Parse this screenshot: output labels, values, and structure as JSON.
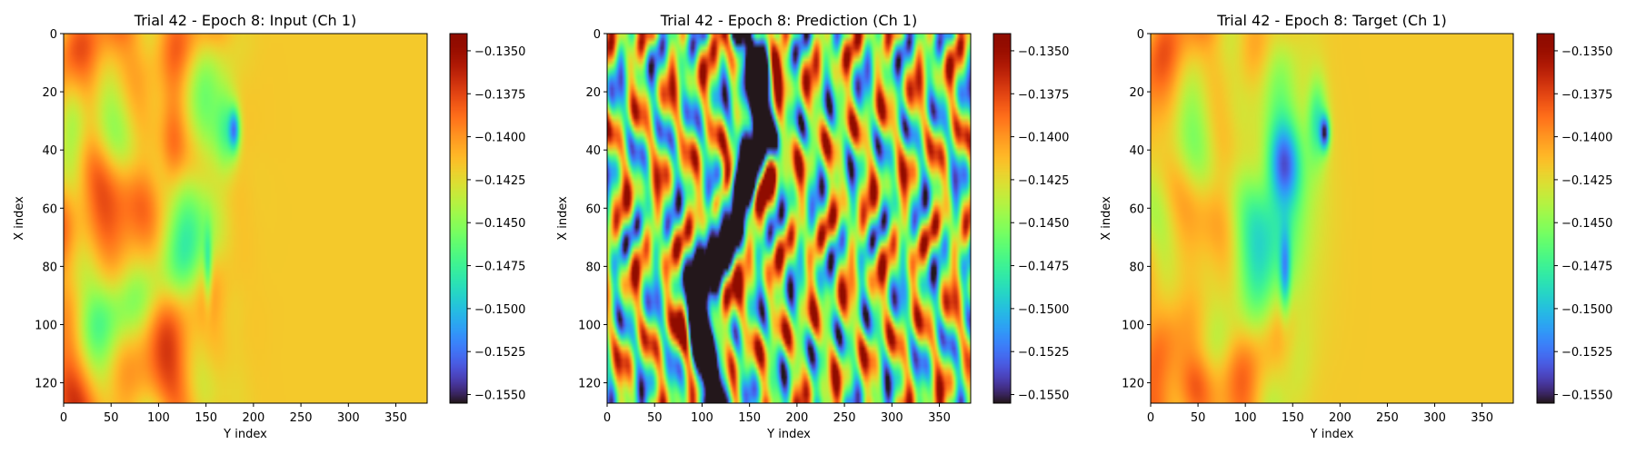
{
  "colormap": "turbo",
  "chart_data": [
    {
      "type": "heatmap",
      "title": "Trial 42 - Epoch 8: Input (Ch 1)",
      "xlabel": "Y index",
      "ylabel": "X index",
      "xlim": [
        0,
        383
      ],
      "ylim": [
        127,
        0
      ],
      "xticks": [
        "0",
        "50",
        "100",
        "150",
        "200",
        "250",
        "300",
        "350"
      ],
      "yticks": [
        "0",
        "20",
        "40",
        "60",
        "80",
        "100",
        "120"
      ],
      "colorbar": {
        "vmin": -0.1555,
        "vmax": -0.134,
        "ticks": [
          "−0.1350",
          "−0.1375",
          "−0.1400",
          "−0.1425",
          "−0.1450",
          "−0.1475",
          "−0.1500",
          "−0.1525",
          "−0.1550"
        ]
      },
      "field_description": "Wavy orange/red streaks for Y<150, bright green blob near Y 130-160 / X 30-90, cyan-blue spot near Y≈180, X≈33; uniform orange for Y>200"
    },
    {
      "type": "heatmap",
      "title": "Trial 42 - Epoch 8: Prediction (Ch 1)",
      "xlabel": "Y index",
      "ylabel": "X index",
      "xlim": [
        0,
        383
      ],
      "ylim": [
        127,
        0
      ],
      "xticks": [
        "0",
        "50",
        "100",
        "150",
        "200",
        "250",
        "300",
        "350"
      ],
      "yticks": [
        "0",
        "20",
        "40",
        "60",
        "80",
        "100",
        "120"
      ],
      "colorbar": {
        "vmin": -0.1555,
        "vmax": -0.134,
        "ticks": [
          "−0.1350",
          "−0.1375",
          "−0.1400",
          "−0.1425",
          "−0.1450",
          "−0.1475",
          "−0.1500",
          "−0.1525",
          "−0.1550"
        ]
      },
      "field_description": "Turbulent multicolor field with a dark-blue/dark-red vertical band around Y 100-180 spanning all X"
    },
    {
      "type": "heatmap",
      "title": "Trial 42 - Epoch 8: Target (Ch 1)",
      "xlabel": "Y index",
      "ylabel": "X index",
      "xlim": [
        0,
        383
      ],
      "ylim": [
        127,
        0
      ],
      "xticks": [
        "0",
        "50",
        "100",
        "150",
        "200",
        "250",
        "300",
        "350"
      ],
      "yticks": [
        "0",
        "20",
        "40",
        "60",
        "80",
        "100",
        "120"
      ],
      "colorbar": {
        "vmin": -0.1555,
        "vmax": -0.134,
        "ticks": [
          "−0.1350",
          "−0.1375",
          "−0.1400",
          "−0.1425",
          "−0.1450",
          "−0.1475",
          "−0.1500",
          "−0.1525",
          "−0.1550"
        ]
      },
      "field_description": "Similar to input: orange/red streaks left, large green/cyan region Y 100-170, dark blue spot near Y≈185, X≈34; uniform orange for Y>200"
    }
  ]
}
